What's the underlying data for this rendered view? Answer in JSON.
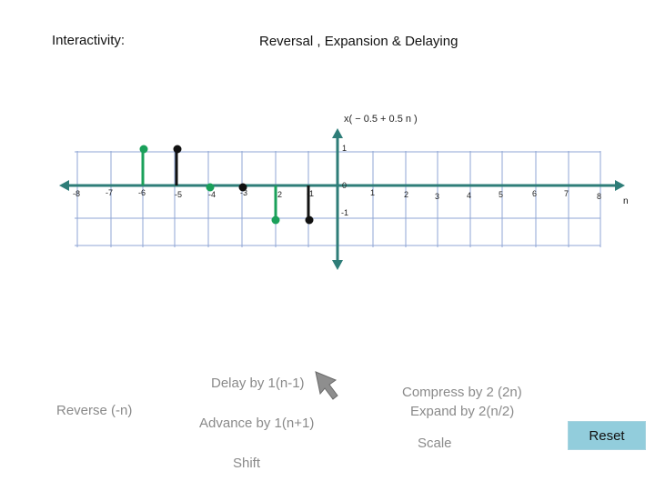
{
  "header": {
    "interactivity_label": "Interactivity:",
    "title": "Reversal , Expansion & Delaying"
  },
  "plot": {
    "function_label": "x( − 0.5 + 0.5 n )",
    "axis_var": "n",
    "y_ticks": [
      "1",
      "0",
      "-1"
    ],
    "x_ticks": [
      "-8",
      "-7",
      "-6",
      "-5",
      "-4",
      "-3",
      "-2",
      "-1",
      "1",
      "2",
      "3",
      "4",
      "5",
      "6",
      "7",
      "8"
    ],
    "colors": {
      "axis": "#2e7d78",
      "grid": "#8fa6d4",
      "green": "#1aa05a",
      "black": "#111111"
    }
  },
  "controls": {
    "reverse": "Reverse (-n)",
    "delay": "Delay by 1(n-1)",
    "advance": "Advance by 1(n+1)",
    "shift": "Shift",
    "compress": "Compress by 2 (2n)",
    "expand": "Expand by 2(n/2)",
    "scale": "Scale",
    "reset": "Reset"
  }
}
